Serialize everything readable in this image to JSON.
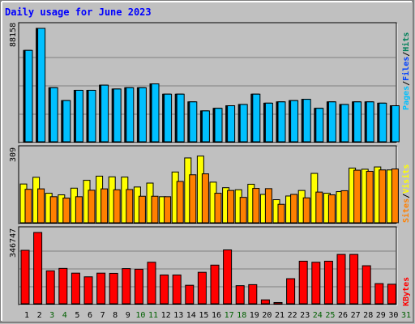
{
  "title": "Daily usage for June 2023",
  "colors": {
    "background": "#c0c0c0",
    "title": "#0000ff",
    "pages": "#00c0ff",
    "files": "#0040ff",
    "hits": "#00805a",
    "sites": "#ff8000",
    "visits": "#ffff00",
    "kbytes": "#ff0000",
    "weekday_label": "#000000",
    "weekend_label": "#006000"
  },
  "chart_data": [
    {
      "type": "bar",
      "panel": "hits",
      "ylabel_max": "88158",
      "legend": [
        "Pages",
        "/",
        "Files",
        "/",
        "Hits"
      ],
      "categories": [
        "1",
        "2",
        "3",
        "4",
        "5",
        "6",
        "7",
        "8",
        "9",
        "10",
        "11",
        "12",
        "13",
        "14",
        "15",
        "16",
        "17",
        "18",
        "19",
        "20",
        "21",
        "22",
        "23",
        "24",
        "25",
        "26",
        "27",
        "28",
        "29",
        "30",
        "31"
      ],
      "weekend_days": [
        "3",
        "4",
        "10",
        "11",
        "17",
        "18",
        "24",
        "25",
        "31"
      ],
      "ylim": [
        0,
        88158
      ],
      "series": [
        {
          "name": "Hits",
          "values": [
            71000,
            88158,
            42000,
            32000,
            40000,
            40000,
            44000,
            41000,
            42000,
            42000,
            45000,
            37000,
            37000,
            31000,
            24000,
            26000,
            28000,
            29000,
            37000,
            30000,
            31000,
            32000,
            33000,
            26000,
            31000,
            29000,
            31000,
            31000,
            30000,
            28000,
            0
          ]
        },
        {
          "name": "Files",
          "values": [
            71000,
            88158,
            42000,
            32000,
            40000,
            40000,
            44000,
            41000,
            42000,
            42000,
            45000,
            37000,
            37000,
            31000,
            24000,
            26000,
            28000,
            29000,
            37000,
            30000,
            31000,
            32000,
            33000,
            26000,
            31000,
            29000,
            31000,
            31000,
            30000,
            28000,
            0
          ]
        },
        {
          "name": "Pages",
          "values": [
            71000,
            88158,
            42000,
            32000,
            40000,
            40000,
            44000,
            41000,
            42000,
            42000,
            45000,
            37000,
            37000,
            31000,
            24000,
            26000,
            28000,
            29000,
            37000,
            30000,
            31000,
            32000,
            33000,
            26000,
            31000,
            29000,
            31000,
            31000,
            30000,
            28000,
            0
          ]
        }
      ]
    },
    {
      "type": "bar",
      "panel": "visits",
      "ylabel_max": "309",
      "legend": [
        "Sites",
        "/",
        "Visits"
      ],
      "categories": [
        "1",
        "2",
        "3",
        "4",
        "5",
        "6",
        "7",
        "8",
        "9",
        "10",
        "11",
        "12",
        "13",
        "14",
        "15",
        "16",
        "17",
        "18",
        "19",
        "20",
        "21",
        "22",
        "23",
        "24",
        "25",
        "26",
        "27",
        "28",
        "29",
        "30",
        "31"
      ],
      "ylim": [
        0,
        309
      ],
      "series": [
        {
          "name": "Visits",
          "values": [
            168,
            197,
            128,
            121,
            150,
            184,
            202,
            199,
            198,
            155,
            172,
            113,
            220,
            281,
            289,
            176,
            152,
            143,
            167,
            123,
            100,
            116,
            140,
            214,
            128,
            135,
            237,
            232,
            242,
            229,
            0
          ]
        },
        {
          "name": "Sites",
          "values": [
            145,
            147,
            113,
            107,
            113,
            141,
            147,
            143,
            144,
            115,
            115,
            113,
            179,
            208,
            212,
            128,
            140,
            110,
            149,
            148,
            80,
            123,
            108,
            133,
            121,
            139,
            228,
            223,
            229,
            233,
            0
          ]
        }
      ]
    },
    {
      "type": "bar",
      "panel": "kbytes",
      "ylabel_max": "346747",
      "legend": [
        "KBytes"
      ],
      "categories": [
        "1",
        "2",
        "3",
        "4",
        "5",
        "6",
        "7",
        "8",
        "9",
        "10",
        "11",
        "12",
        "13",
        "14",
        "15",
        "16",
        "17",
        "18",
        "19",
        "20",
        "21",
        "22",
        "23",
        "24",
        "25",
        "26",
        "27",
        "28",
        "29",
        "30",
        "31"
      ],
      "ylim": [
        0,
        346747
      ],
      "series": [
        {
          "name": "KBytes",
          "values": [
            260000,
            346747,
            160000,
            172000,
            149000,
            131000,
            149000,
            148000,
            171000,
            168000,
            202000,
            140000,
            140000,
            90000,
            153000,
            188000,
            262000,
            88000,
            93000,
            19000,
            6000,
            122000,
            207000,
            202000,
            207000,
            240000,
            240000,
            185000,
            98000,
            95000,
            0
          ]
        }
      ]
    }
  ]
}
